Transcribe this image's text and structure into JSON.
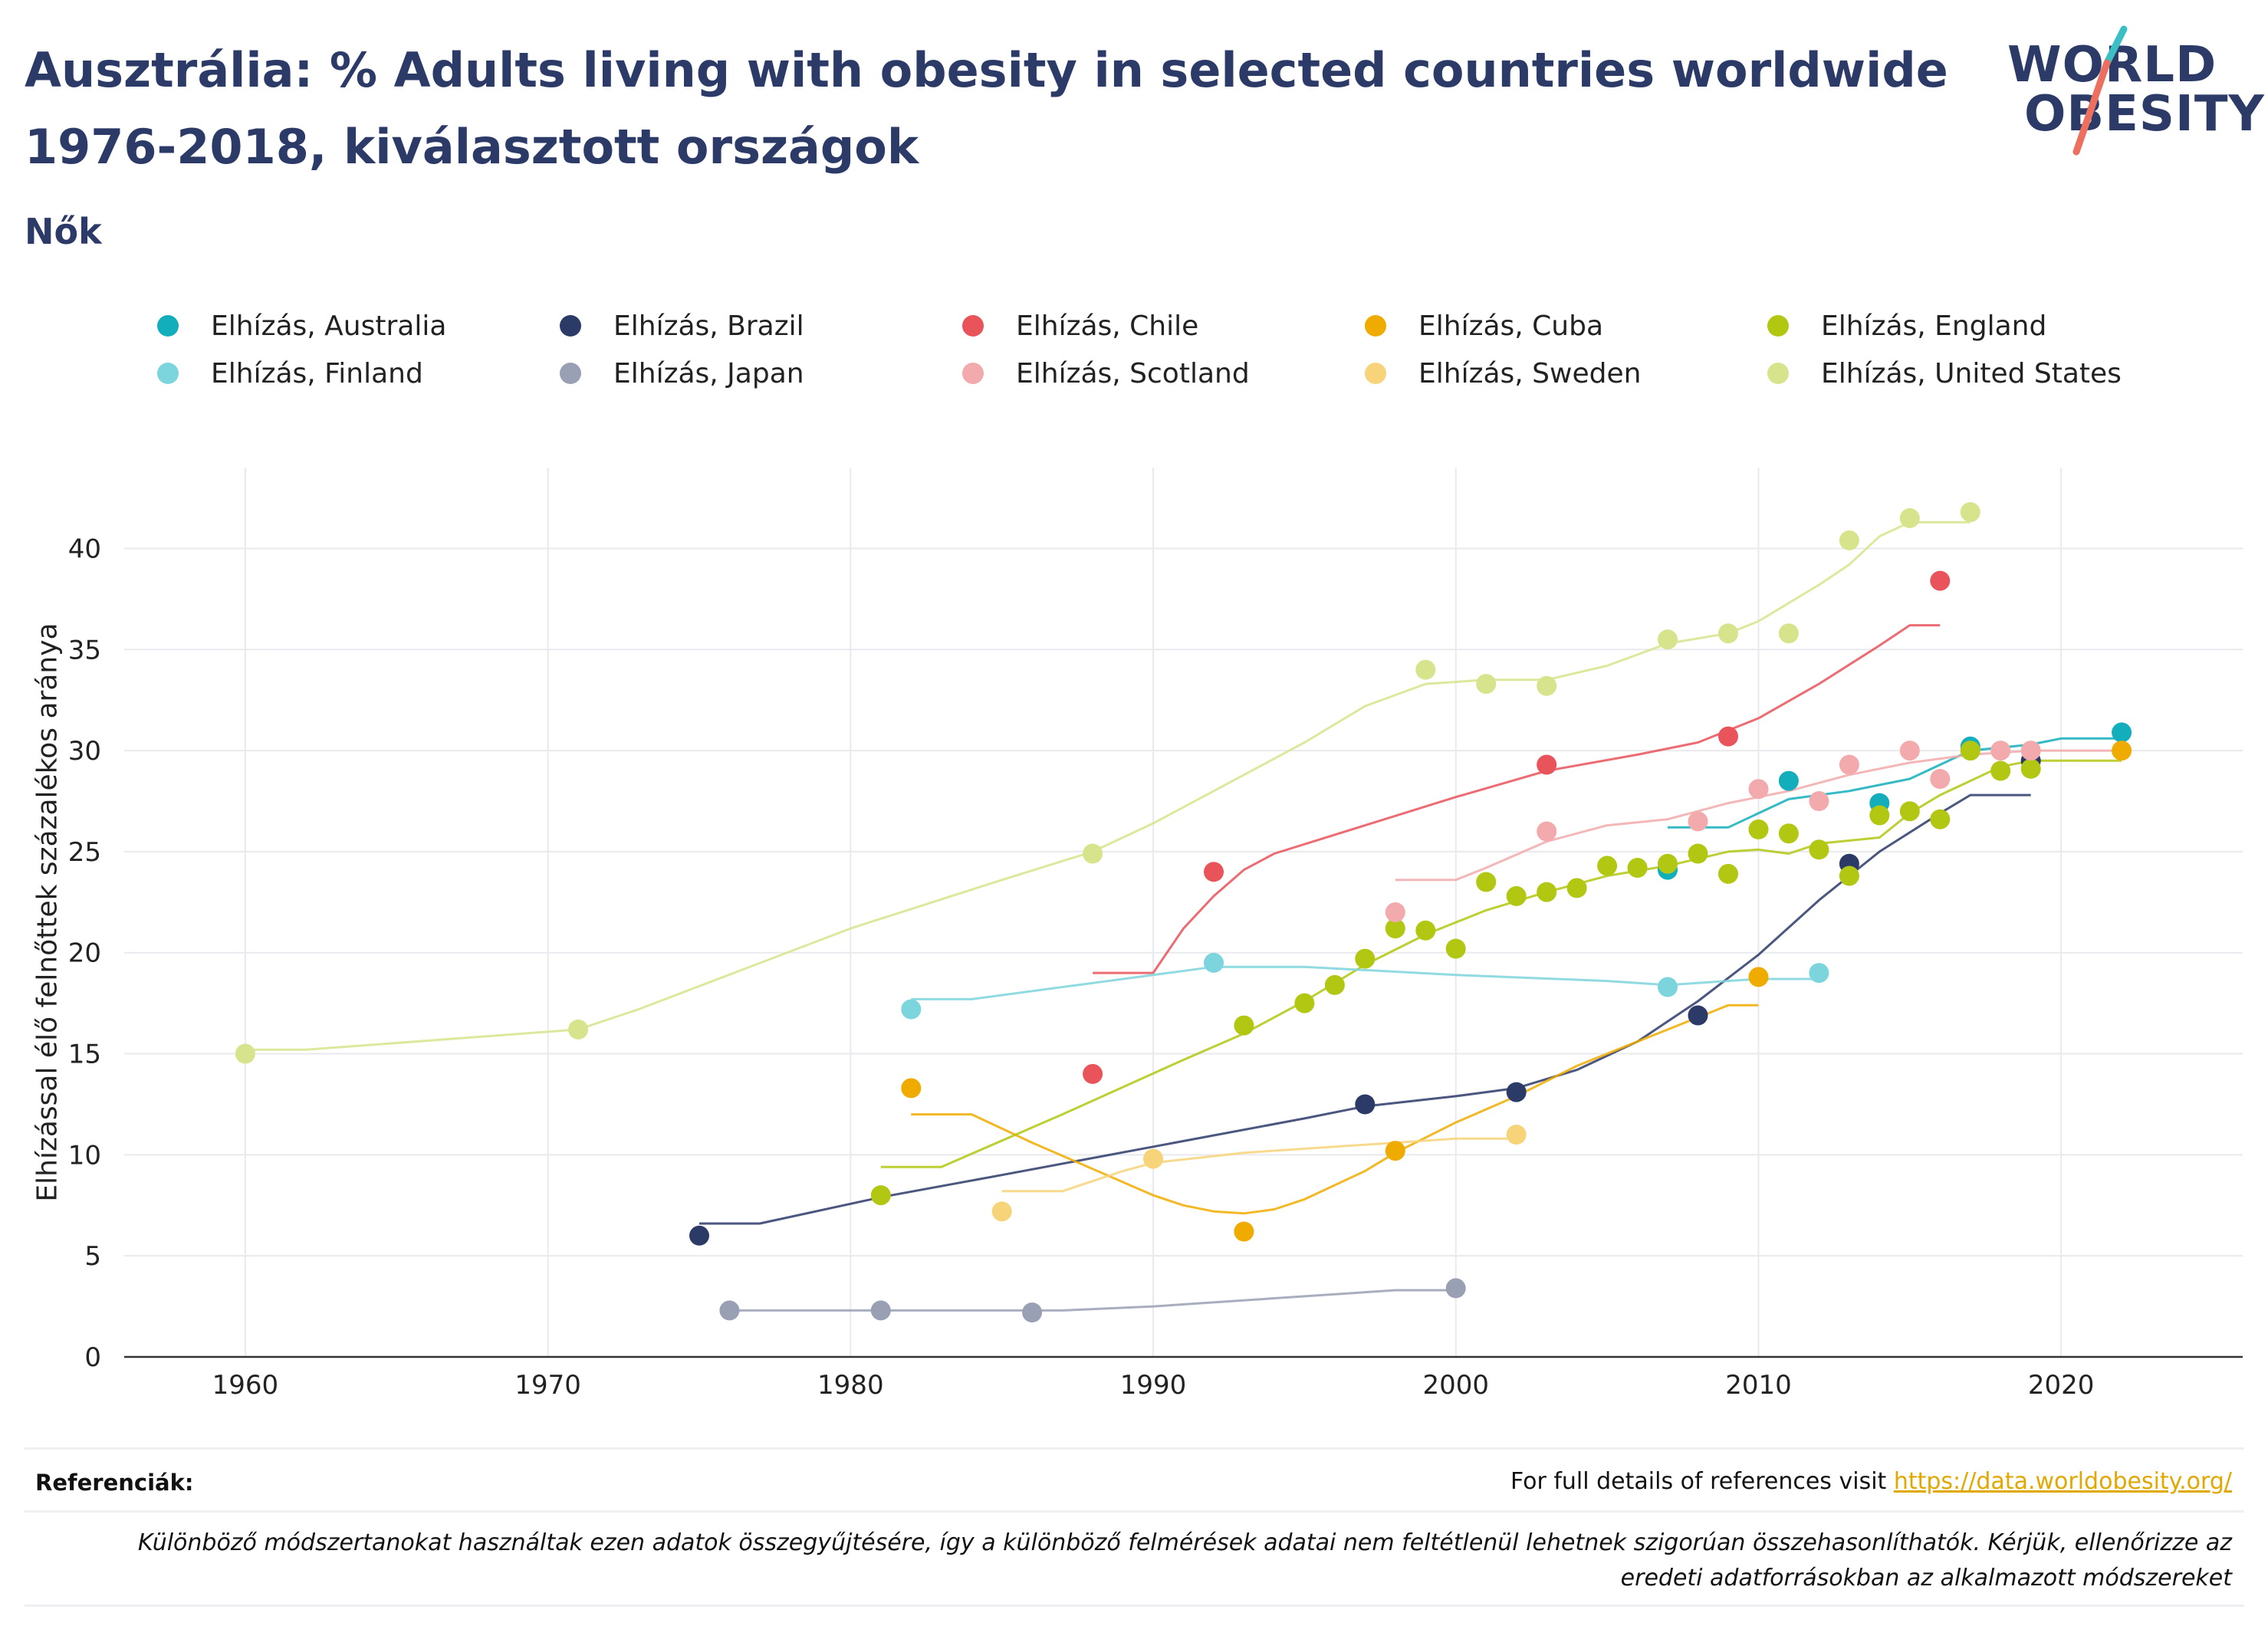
{
  "header": {
    "title_line1": "Ausztrália: % Adults living with obesity in selected countries worldwide",
    "title_line2": "1976-2018, kiválasztott országok",
    "subtitle": "Nők"
  },
  "logo": {
    "line1": "WORLD",
    "line2": "OBESITY"
  },
  "footer": {
    "references_label": "Referenciák:",
    "references_text": "For full details of references visit ",
    "references_link": "https://data.worldobesity.org/",
    "note_line1": "Különböző módszertanokat használtak ezen adatok összegyűjtésére, így a különböző felmérések adatai nem feltétlenül lehetnek szigorúan összehasonlíthatók. Kérjük, ellenőrizze az",
    "note_line2": "eredeti adatforrásokban az alkalmazott módszereket"
  },
  "chart_data": {
    "type": "scatter",
    "ylabel": "Elhízással élő felnőttek százalékos aránya",
    "xlabel": "",
    "xlim": [
      1956,
      2026
    ],
    "ylim": [
      0,
      44
    ],
    "xticks": [
      1960,
      1970,
      1980,
      1990,
      2000,
      2010,
      2020
    ],
    "yticks": [
      0,
      5,
      10,
      15,
      20,
      25,
      30,
      35,
      40
    ],
    "grid": true,
    "legend_position": "top",
    "series": [
      {
        "name": "Elhízás, Australia",
        "color": "#13aebc",
        "points": [
          [
            2007,
            24.1
          ],
          [
            2011,
            28.5
          ],
          [
            2014,
            27.4
          ],
          [
            2017,
            30.2
          ],
          [
            2022,
            30.9
          ]
        ],
        "trend": [
          [
            2007,
            26.2
          ],
          [
            2009,
            26.2
          ],
          [
            2011,
            27.6
          ],
          [
            2013,
            28.0
          ],
          [
            2015,
            28.6
          ],
          [
            2017,
            30.0
          ],
          [
            2019,
            30.3
          ],
          [
            2020,
            30.6
          ],
          [
            2022,
            30.6
          ]
        ]
      },
      {
        "name": "Elhízás, Brazil",
        "color": "#2b3a67",
        "points": [
          [
            1975,
            6.0
          ],
          [
            1997,
            12.5
          ],
          [
            2002,
            13.1
          ],
          [
            2008,
            16.9
          ],
          [
            2013,
            24.4
          ],
          [
            2019,
            29.5
          ]
        ],
        "trend": [
          [
            1975,
            6.6
          ],
          [
            1977,
            6.6
          ],
          [
            1981,
            7.9
          ],
          [
            1985,
            9.0
          ],
          [
            1990,
            10.4
          ],
          [
            1995,
            11.8
          ],
          [
            1997,
            12.4
          ],
          [
            2000,
            12.9
          ],
          [
            2002,
            13.3
          ],
          [
            2004,
            14.2
          ],
          [
            2006,
            15.6
          ],
          [
            2008,
            17.6
          ],
          [
            2010,
            19.9
          ],
          [
            2012,
            22.6
          ],
          [
            2014,
            25.0
          ],
          [
            2016,
            26.9
          ],
          [
            2017,
            27.8
          ],
          [
            2019,
            27.8
          ]
        ]
      },
      {
        "name": "Elhízás, Chile",
        "color": "#e8545a",
        "points": [
          [
            1988,
            14.0
          ],
          [
            1992,
            24.0
          ],
          [
            2003,
            29.3
          ],
          [
            2009,
            30.7
          ],
          [
            2016,
            38.4
          ]
        ],
        "trend": [
          [
            1988,
            19.0
          ],
          [
            1990,
            19.0
          ],
          [
            1991,
            21.2
          ],
          [
            1992,
            22.8
          ],
          [
            1993,
            24.1
          ],
          [
            1994,
            24.9
          ],
          [
            2000,
            27.7
          ],
          [
            2003,
            29.0
          ],
          [
            2006,
            29.8
          ],
          [
            2008,
            30.4
          ],
          [
            2010,
            31.6
          ],
          [
            2012,
            33.3
          ],
          [
            2014,
            35.2
          ],
          [
            2015,
            36.2
          ],
          [
            2016,
            36.2
          ]
        ]
      },
      {
        "name": "Elhízás, Cuba",
        "color": "#f0ab00",
        "points": [
          [
            1982,
            13.3
          ],
          [
            1993,
            6.2
          ],
          [
            1998,
            10.2
          ],
          [
            2010,
            18.8
          ],
          [
            2022,
            30.0
          ]
        ],
        "trend": [
          [
            1982,
            12.0
          ],
          [
            1984,
            12.0
          ],
          [
            1986,
            10.6
          ],
          [
            1988,
            9.3
          ],
          [
            1990,
            8.0
          ],
          [
            1991,
            7.5
          ],
          [
            1992,
            7.2
          ],
          [
            1993,
            7.1
          ],
          [
            1994,
            7.3
          ],
          [
            1995,
            7.8
          ],
          [
            1997,
            9.2
          ],
          [
            1998,
            10.1
          ],
          [
            2000,
            11.6
          ],
          [
            2002,
            12.9
          ],
          [
            2004,
            14.4
          ],
          [
            2006,
            15.6
          ],
          [
            2008,
            16.8
          ],
          [
            2009,
            17.4
          ],
          [
            2010,
            17.4
          ]
        ]
      },
      {
        "name": "Elhízás, England",
        "color": "#b2c712",
        "points": [
          [
            1981,
            8.0
          ],
          [
            1993,
            16.4
          ],
          [
            1995,
            17.5
          ],
          [
            1996,
            18.4
          ],
          [
            1997,
            19.7
          ],
          [
            1998,
            21.2
          ],
          [
            1999,
            21.1
          ],
          [
            2000,
            20.2
          ],
          [
            2001,
            23.5
          ],
          [
            2002,
            22.8
          ],
          [
            2003,
            23.0
          ],
          [
            2004,
            23.2
          ],
          [
            2005,
            24.3
          ],
          [
            2006,
            24.2
          ],
          [
            2007,
            24.4
          ],
          [
            2008,
            24.9
          ],
          [
            2009,
            23.9
          ],
          [
            2010,
            26.1
          ],
          [
            2011,
            25.9
          ],
          [
            2012,
            25.1
          ],
          [
            2013,
            23.8
          ],
          [
            2014,
            26.8
          ],
          [
            2015,
            27.0
          ],
          [
            2016,
            26.6
          ],
          [
            2017,
            30.0
          ],
          [
            2018,
            29.0
          ],
          [
            2019,
            29.1
          ]
        ],
        "trend": [
          [
            1981,
            9.4
          ],
          [
            1983,
            9.4
          ],
          [
            1987,
            12.0
          ],
          [
            1991,
            14.7
          ],
          [
            1993,
            16.0
          ],
          [
            1995,
            17.6
          ],
          [
            1997,
            19.4
          ],
          [
            1999,
            20.9
          ],
          [
            2001,
            22.1
          ],
          [
            2003,
            23.0
          ],
          [
            2005,
            23.8
          ],
          [
            2007,
            24.3
          ],
          [
            2009,
            25.0
          ],
          [
            2010,
            25.1
          ],
          [
            2011,
            24.9
          ],
          [
            2012,
            25.4
          ],
          [
            2014,
            25.7
          ],
          [
            2015,
            26.9
          ],
          [
            2016,
            27.8
          ],
          [
            2017,
            28.5
          ],
          [
            2018,
            29.2
          ],
          [
            2019,
            29.5
          ],
          [
            2022,
            29.5
          ]
        ]
      },
      {
        "name": "Elhízás, Finland",
        "color": "#7cd5dc",
        "points": [
          [
            1982,
            17.2
          ],
          [
            1992,
            19.5
          ],
          [
            2007,
            18.3
          ],
          [
            2012,
            19.0
          ]
        ],
        "trend": [
          [
            1982,
            17.7
          ],
          [
            1984,
            17.7
          ],
          [
            1988,
            18.5
          ],
          [
            1992,
            19.3
          ],
          [
            1995,
            19.3
          ],
          [
            2000,
            18.9
          ],
          [
            2005,
            18.6
          ],
          [
            2007,
            18.4
          ],
          [
            2010,
            18.7
          ],
          [
            2012,
            18.7
          ]
        ]
      },
      {
        "name": "Elhízás, Japan",
        "color": "#9aa0b4",
        "points": [
          [
            1976,
            2.3
          ],
          [
            1981,
            2.3
          ],
          [
            1986,
            2.2
          ],
          [
            2000,
            3.4
          ]
        ],
        "trend": [
          [
            1976,
            2.3
          ],
          [
            1987,
            2.3
          ],
          [
            1990,
            2.5
          ],
          [
            1995,
            3.0
          ],
          [
            1998,
            3.3
          ],
          [
            2000,
            3.3
          ]
        ]
      },
      {
        "name": "Elhízás, Scotland",
        "color": "#f2aaac",
        "points": [
          [
            1998,
            22.0
          ],
          [
            2003,
            26.0
          ],
          [
            2008,
            26.5
          ],
          [
            2010,
            28.1
          ],
          [
            2012,
            27.5
          ],
          [
            2013,
            29.3
          ],
          [
            2015,
            30.0
          ],
          [
            2016,
            28.6
          ],
          [
            2018,
            30.0
          ],
          [
            2019,
            30.0
          ]
        ],
        "trend": [
          [
            1998,
            23.6
          ],
          [
            2000,
            23.6
          ],
          [
            2001,
            24.2
          ],
          [
            2003,
            25.5
          ],
          [
            2005,
            26.3
          ],
          [
            2007,
            26.6
          ],
          [
            2009,
            27.4
          ],
          [
            2011,
            28.0
          ],
          [
            2013,
            28.8
          ],
          [
            2015,
            29.4
          ],
          [
            2017,
            29.8
          ],
          [
            2019,
            30.0
          ],
          [
            2022,
            30.0
          ]
        ]
      },
      {
        "name": "Elhízás, Sweden",
        "color": "#f7d37a",
        "points": [
          [
            1985,
            7.2
          ],
          [
            1990,
            9.8
          ],
          [
            2002,
            11.0
          ]
        ],
        "trend": [
          [
            1985,
            8.2
          ],
          [
            1987,
            8.2
          ],
          [
            1989,
            9.2
          ],
          [
            1990,
            9.6
          ],
          [
            1993,
            10.1
          ],
          [
            1997,
            10.5
          ],
          [
            2000,
            10.8
          ],
          [
            2002,
            10.8
          ]
        ]
      },
      {
        "name": "Elhízás, United States",
        "color": "#d8e48b",
        "points": [
          [
            1960,
            15.0
          ],
          [
            1971,
            16.2
          ],
          [
            1988,
            24.9
          ],
          [
            1999,
            34.0
          ],
          [
            2001,
            33.3
          ],
          [
            2003,
            33.2
          ],
          [
            2007,
            35.5
          ],
          [
            2009,
            35.8
          ],
          [
            2011,
            35.8
          ],
          [
            2013,
            40.4
          ],
          [
            2015,
            41.5
          ],
          [
            2017,
            41.8
          ]
        ],
        "trend": [
          [
            1960,
            15.2
          ],
          [
            1962,
            15.2
          ],
          [
            1971,
            16.2
          ],
          [
            1973,
            17.2
          ],
          [
            1980,
            21.2
          ],
          [
            1985,
            23.6
          ],
          [
            1988,
            25.0
          ],
          [
            1990,
            26.4
          ],
          [
            1995,
            30.4
          ],
          [
            1997,
            32.2
          ],
          [
            1999,
            33.3
          ],
          [
            2001,
            33.5
          ],
          [
            2003,
            33.5
          ],
          [
            2005,
            34.2
          ],
          [
            2007,
            35.3
          ],
          [
            2009,
            35.8
          ],
          [
            2010,
            36.4
          ],
          [
            2012,
            38.2
          ],
          [
            2013,
            39.2
          ],
          [
            2014,
            40.6
          ],
          [
            2015,
            41.3
          ],
          [
            2017,
            41.3
          ]
        ]
      }
    ]
  }
}
